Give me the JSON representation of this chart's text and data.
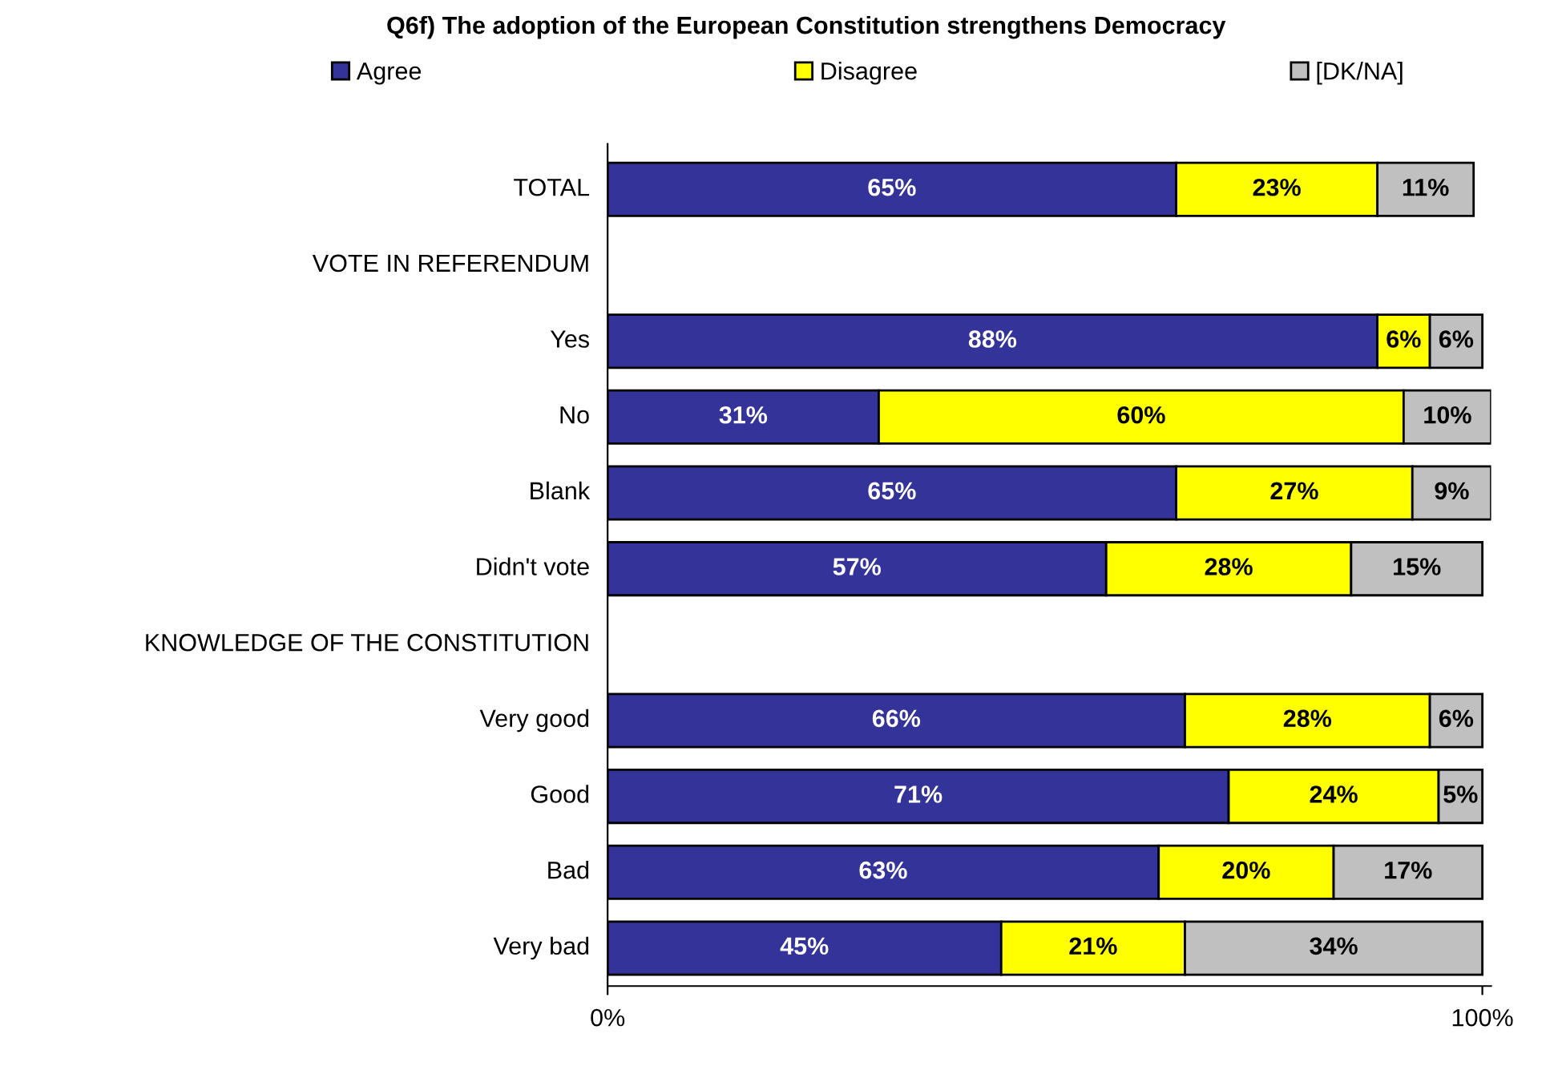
{
  "chart_data": {
    "type": "bar",
    "orientation": "horizontal",
    "stacked": true,
    "title": "Q6f) The adoption of the European Constitution strengthens Democracy",
    "categories": [
      "TOTAL",
      "VOTE IN REFERENDUM",
      "Yes",
      "No",
      "Blank",
      "Didn't vote",
      "KNOWLEDGE OF THE CONSTITUTION",
      "Very good",
      "Good",
      "Bad",
      "Very bad"
    ],
    "series": [
      {
        "name": "Agree",
        "color": "#333399",
        "values": [
          65,
          null,
          88,
          31,
          65,
          57,
          null,
          66,
          71,
          63,
          45
        ],
        "value_labels": [
          "65%",
          null,
          "88%",
          "31%",
          "65%",
          "57%",
          null,
          "66%",
          "71%",
          "63%",
          "45%"
        ]
      },
      {
        "name": "Disagree",
        "color": "#ffff00",
        "values": [
          23,
          null,
          6,
          60,
          27,
          28,
          null,
          28,
          24,
          20,
          21
        ],
        "value_labels": [
          "23%",
          null,
          "6%",
          "60%",
          "27%",
          "28%",
          null,
          "28%",
          "24%",
          "20%",
          "21%"
        ]
      },
      {
        "name": "[DK/NA]",
        "color": "#c0c0c0",
        "values": [
          11,
          null,
          6,
          10,
          9,
          15,
          null,
          6,
          5,
          17,
          34
        ],
        "value_labels": [
          "11%",
          null,
          "6%",
          "10%",
          "9%",
          "15%",
          null,
          "6%",
          "5%",
          "17%",
          "34%"
        ]
      }
    ],
    "xlim": [
      0,
      101
    ],
    "xticks": [
      {
        "value": 0,
        "label": "0%"
      },
      {
        "value": 100,
        "label": "100%"
      }
    ],
    "legend": "top",
    "grid": false
  }
}
